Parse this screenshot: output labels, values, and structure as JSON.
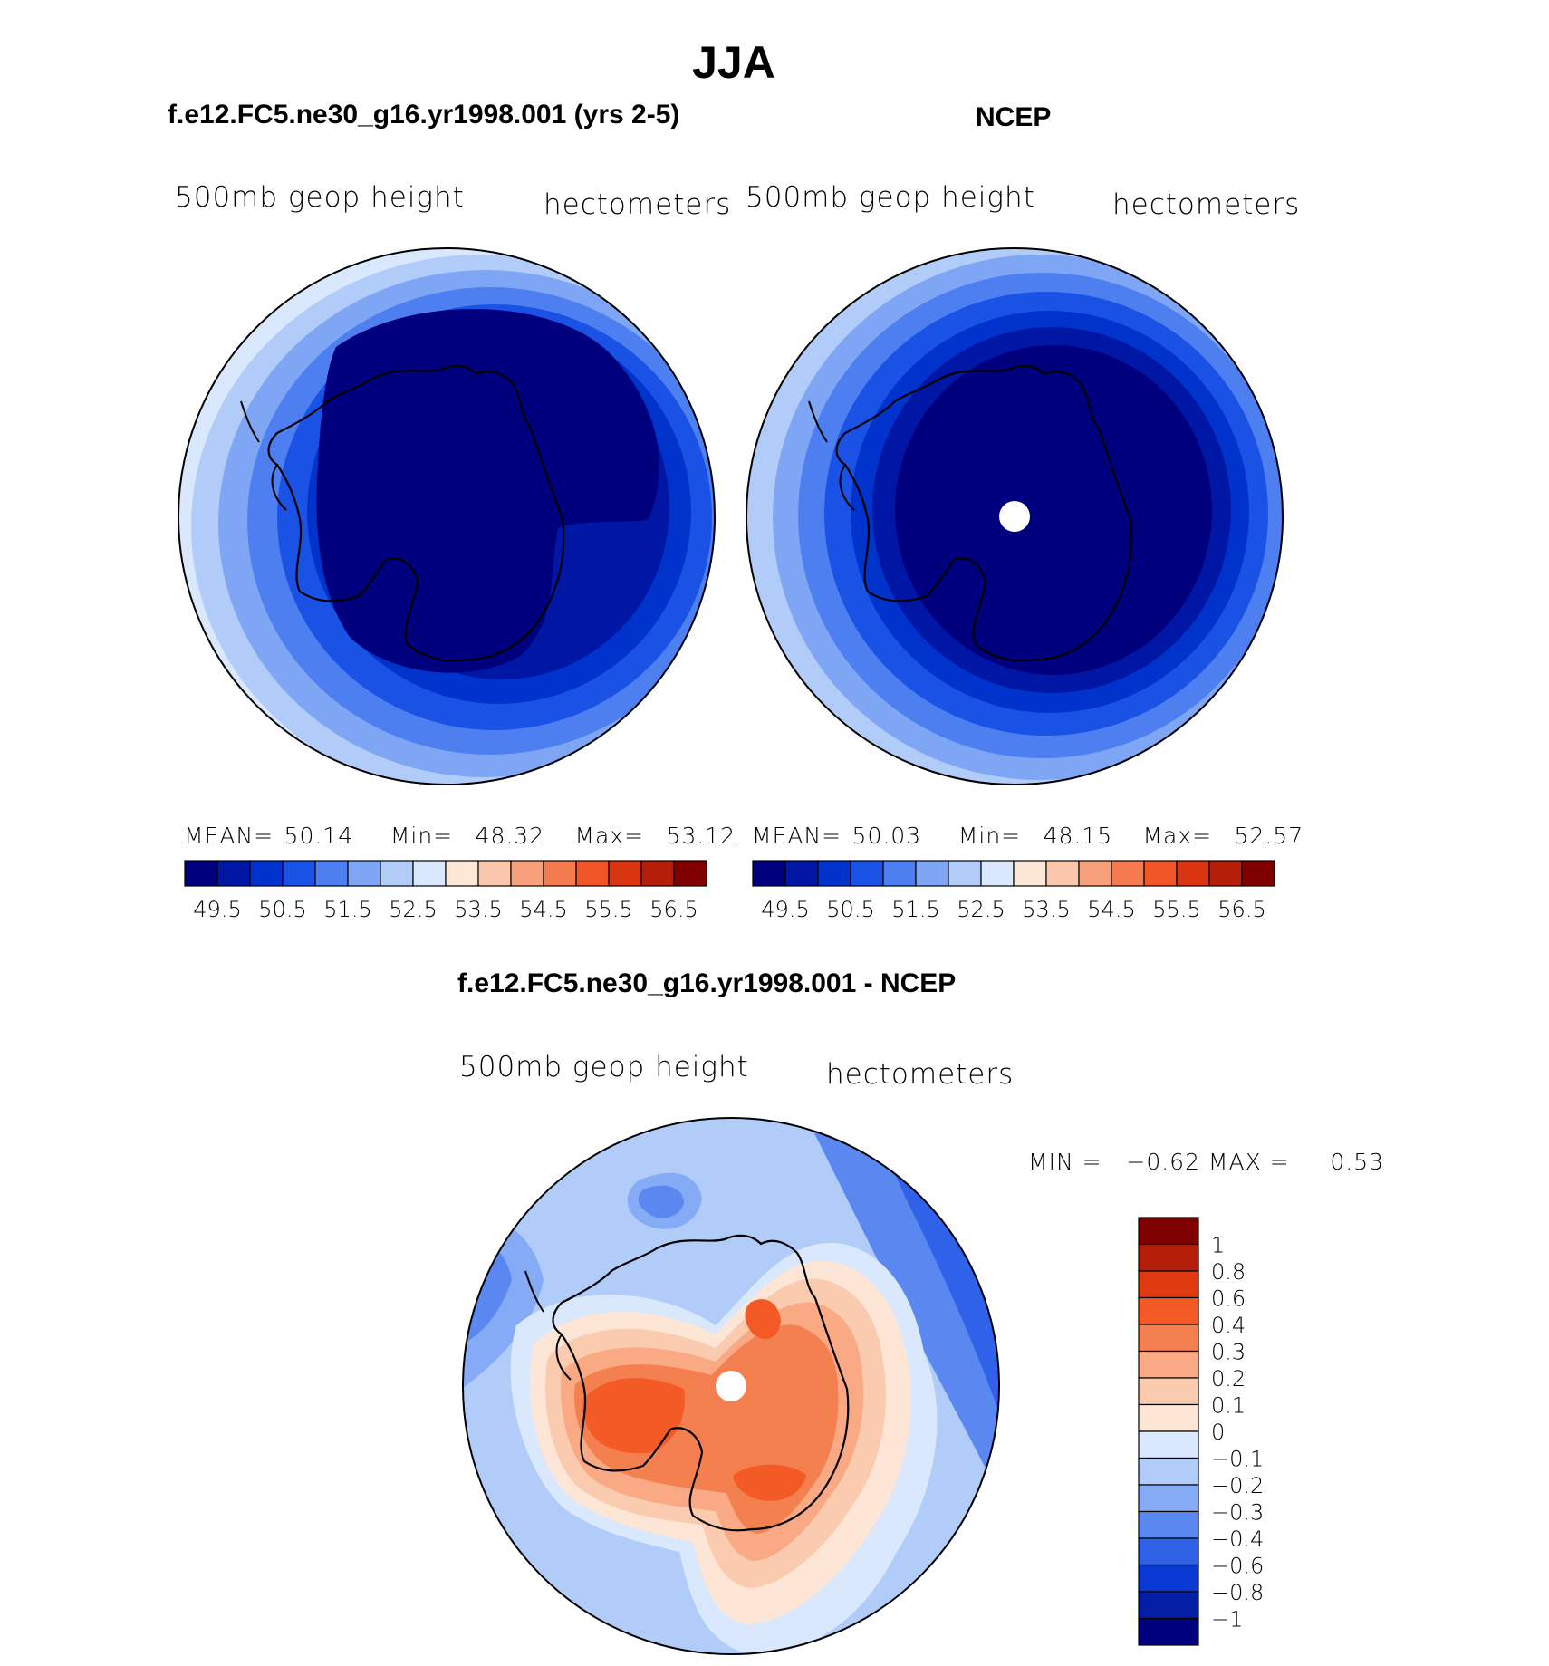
{
  "season": "JJA",
  "panels": {
    "model": {
      "title": "f.e12.FC5.ne30_g16.yr1998.001 (yrs 2-5)",
      "left_label": "500mb geop height",
      "right_label": "hectometers",
      "stats": {
        "mean_label": "MEAN=",
        "mean": "50.14",
        "min_label": "Min=",
        "min": "48.32",
        "max_label": "Max=",
        "max": "53.12"
      },
      "pole_hole": false
    },
    "obs": {
      "title": "NCEP",
      "left_label": "500mb geop height",
      "right_label": "hectometers",
      "stats": {
        "mean_label": "MEAN=",
        "mean": "50.03",
        "min_label": "Min=",
        "min": "48.15",
        "max_label": "Max=",
        "max": "52.57"
      },
      "pole_hole": true
    },
    "diff": {
      "title": "f.e12.FC5.ne30_g16.yr1998.001 - NCEP",
      "left_label": "500mb geop height",
      "right_label": "hectometers",
      "minmax_text": "MIN =   −0.62 MAX =     0.53",
      "pole_hole": true
    }
  },
  "horizontal_colorbar": {
    "colors": [
      "#00007f",
      "#0016a4",
      "#0033cc",
      "#1a52e6",
      "#4d7ff0",
      "#7fa6f5",
      "#b2ccfa",
      "#d9e8fc",
      "#fde8d8",
      "#fbc7ac",
      "#f7a07c",
      "#f47a4f",
      "#f05527",
      "#d93511",
      "#b51e08",
      "#800000"
    ],
    "tick_labels": [
      "49.5",
      "50.5",
      "51.5",
      "52.5",
      "53.5",
      "54.5",
      "55.5",
      "56.5"
    ]
  },
  "vertical_colorbar": {
    "colors_top_to_bottom": [
      "#800000",
      "#b51e08",
      "#e03a10",
      "#f45a25",
      "#f47f4f",
      "#f9a984",
      "#fbcbb0",
      "#fde6d6",
      "#d9e8fc",
      "#b2ccfa",
      "#86abf6",
      "#5a88f0",
      "#2f62e8",
      "#0a38d2",
      "#041fa6",
      "#00007f"
    ],
    "tick_labels": [
      "1",
      "0.8",
      "0.6",
      "0.4",
      "0.3",
      "0.2",
      "0.1",
      "0",
      "−0.1",
      "−0.2",
      "−0.3",
      "−0.4",
      "−0.6",
      "−0.8",
      "−1"
    ]
  }
}
